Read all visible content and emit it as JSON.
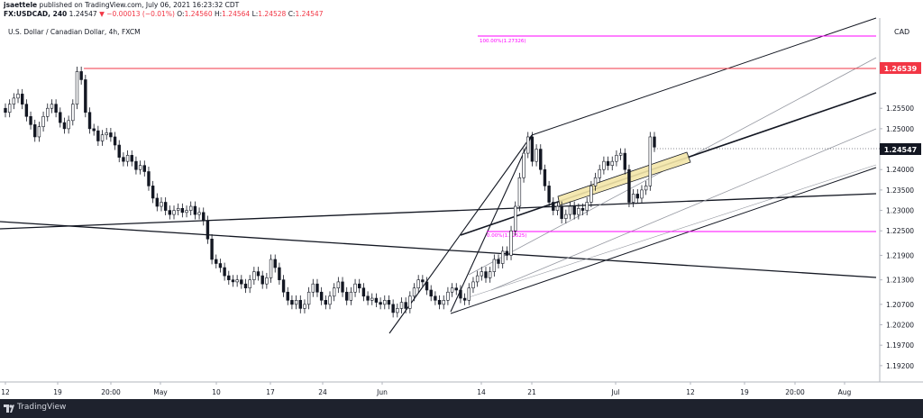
{
  "header": {
    "author": "jsaettele",
    "published": "published on TradingView.com, July 06, 2021 16:23:32 CDT",
    "symbol_line": "FX:USDCAD, 240",
    "last": "1.24547",
    "change": "▼ −0.00013 (−0.01%)",
    "o_label": "O:",
    "o_value": "1.24560",
    "h_label": "H:",
    "h_value": "1.24564",
    "l_label": "L:",
    "l_value": "1.24528",
    "c_label": "C:",
    "c_value": "1.24547",
    "instrument": "U.S. Dollar / Canadian Dollar, 4h, FXCM"
  },
  "footer": {
    "brand": "TradingView"
  },
  "colors": {
    "candle": "#131722",
    "up_fill": "#ffffff",
    "magenta": "#ff00ff",
    "red_level": "#f23645",
    "channel": "#131722",
    "channel_inner": "#9598a1",
    "highlight": "#f3e5a8",
    "footer_bg": "#1e222d"
  },
  "chart_data": {
    "type": "candlestick",
    "price_axis": {
      "ticks": [
        "1.25500",
        "1.25000",
        "1.24500",
        "1.24000",
        "1.23500",
        "1.23000",
        "1.22500",
        "1.21900",
        "1.21300",
        "1.20700",
        "1.20200",
        "1.19700",
        "1.19200"
      ],
      "currency": "CAD",
      "range": [
        1.188,
        1.276
      ]
    },
    "time_axis": {
      "ticks": [
        "12",
        "19",
        "20:00",
        "May",
        "10",
        "17",
        "24",
        "Jun",
        "14",
        "21",
        "Jul",
        "12",
        "19",
        "20:00",
        "Aug"
      ]
    },
    "labels": {
      "last_price": "1.24547",
      "red_level": "1.26539",
      "fib_100": "100.00%(1.27326)",
      "fib_0": "0.00%(1.22525)"
    },
    "red_level_value": 1.26539,
    "fib_100_value": 1.27326,
    "fib_0_value": 1.22525,
    "last_price_value": 1.24547,
    "closes": [
      1.254,
      1.256,
      1.2575,
      1.2585,
      1.256,
      1.253,
      1.251,
      1.248,
      1.2505,
      1.253,
      1.255,
      1.256,
      1.254,
      1.2515,
      1.25,
      1.252,
      1.256,
      1.264,
      1.262,
      1.254,
      1.25,
      1.2495,
      1.247,
      1.2485,
      1.249,
      1.248,
      1.246,
      1.243,
      1.242,
      1.2435,
      1.242,
      1.24,
      1.241,
      1.2395,
      1.236,
      1.233,
      1.231,
      1.232,
      1.23,
      1.229,
      1.23,
      1.2305,
      1.2295,
      1.23,
      1.231,
      1.229,
      1.2295,
      1.2275,
      1.223,
      1.218,
      1.217,
      1.216,
      1.214,
      1.213,
      1.2125,
      1.213,
      1.212,
      1.211,
      1.213,
      1.215,
      1.214,
      1.212,
      1.2135,
      1.218,
      1.216,
      1.213,
      1.21,
      1.208,
      1.207,
      1.208,
      1.206,
      1.207,
      1.21,
      1.212,
      1.21,
      1.208,
      1.207,
      1.209,
      1.211,
      1.2125,
      1.21,
      1.208,
      1.21,
      1.212,
      1.211,
      1.209,
      1.208,
      1.2085,
      1.2075,
      1.207,
      1.208,
      1.207,
      1.205,
      1.206,
      1.2075,
      1.206,
      1.209,
      1.211,
      1.213,
      1.2125,
      1.2105,
      1.209,
      1.208,
      1.207,
      1.208,
      1.21,
      1.211,
      1.2105,
      1.2085,
      1.208,
      1.211,
      1.2125,
      1.214,
      1.215,
      1.2135,
      1.215,
      1.218,
      1.217,
      1.22,
      1.219,
      1.225,
      1.231,
      1.238,
      1.244,
      1.248,
      1.242,
      1.245,
      1.24,
      1.236,
      1.232,
      1.23,
      1.231,
      1.228,
      1.229,
      1.231,
      1.229,
      1.2305,
      1.23,
      1.232,
      1.236,
      1.238,
      1.24,
      1.242,
      1.241,
      1.242,
      1.2435,
      1.244,
      1.24,
      1.232,
      1.234,
      1.233,
      1.235,
      1.236,
      1.248,
      1.2455
    ]
  }
}
